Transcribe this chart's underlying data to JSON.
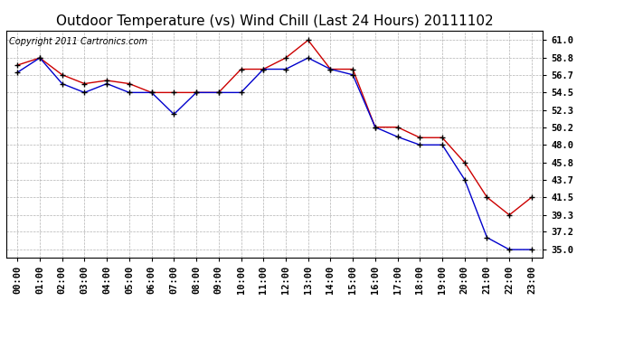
{
  "title": "Outdoor Temperature (vs) Wind Chill (Last 24 Hours) 20111102",
  "copyright": "Copyright 2011 Cartronics.com",
  "hours": [
    "00:00",
    "01:00",
    "02:00",
    "03:00",
    "04:00",
    "05:00",
    "06:00",
    "07:00",
    "08:00",
    "09:00",
    "10:00",
    "11:00",
    "12:00",
    "13:00",
    "14:00",
    "15:00",
    "16:00",
    "17:00",
    "18:00",
    "19:00",
    "20:00",
    "21:00",
    "22:00",
    "23:00"
  ],
  "outdoor_temp": [
    57.9,
    58.8,
    56.7,
    55.6,
    56.0,
    55.6,
    54.5,
    54.5,
    54.5,
    54.5,
    57.4,
    57.4,
    58.8,
    61.0,
    57.4,
    57.4,
    50.2,
    50.2,
    48.9,
    48.9,
    45.8,
    41.5,
    39.3,
    41.5
  ],
  "wind_chill": [
    57.0,
    58.8,
    55.6,
    54.5,
    55.6,
    54.5,
    54.5,
    51.8,
    54.5,
    54.5,
    54.5,
    57.4,
    57.4,
    58.8,
    57.4,
    56.7,
    50.2,
    49.0,
    48.0,
    48.0,
    43.7,
    36.5,
    35.0,
    35.0
  ],
  "outdoor_color": "#cc0000",
  "wind_chill_color": "#0000cc",
  "bg_color": "#ffffff",
  "grid_color": "#aaaaaa",
  "yticks": [
    35.0,
    37.2,
    39.3,
    41.5,
    43.7,
    45.8,
    48.0,
    50.2,
    52.3,
    54.5,
    56.7,
    58.8,
    61.0
  ],
  "ymin": 34.0,
  "ymax": 62.2,
  "title_fontsize": 11,
  "tick_fontsize": 7.5,
  "copyright_fontsize": 7
}
